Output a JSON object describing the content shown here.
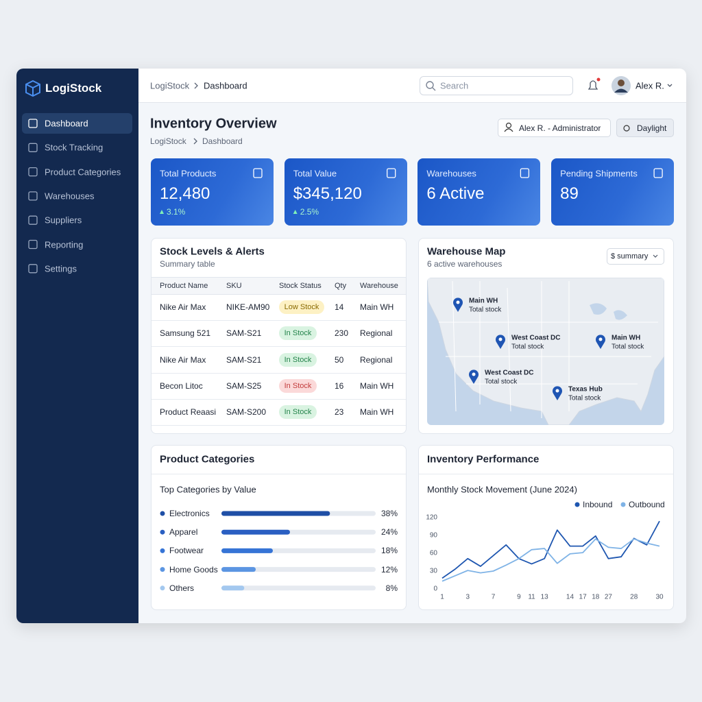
{
  "brand": "LogiStock",
  "nav": {
    "items": [
      "Dashboard",
      "Stock Tracking",
      "Product Categories",
      "Warehouses",
      "Suppliers",
      "Reporting",
      "Settings"
    ],
    "active": 0
  },
  "topbar": {
    "breadcrumb": [
      "LogiStock",
      "Dashboard"
    ],
    "search": "Search",
    "user": "Alex R."
  },
  "header": {
    "title": "Inventory Overview",
    "breadcrumb": [
      "LogiStock",
      "Dashboard"
    ],
    "role": "Alex R. - Administrator",
    "theme": "Daylight"
  },
  "kpis": [
    {
      "label": "Total Products",
      "value": "12,480",
      "change": "3.1%"
    },
    {
      "label": "Total Value",
      "value": "$345,120",
      "change": "2.5%"
    },
    {
      "label": "Warehouses",
      "value": "6 Active"
    },
    {
      "label": "Pending Shipments",
      "value": "89"
    }
  ],
  "stock_table": {
    "title": "Stock Levels & Alerts",
    "subtitle": "Summary table",
    "columns": [
      "Product Name",
      "SKU",
      "Stock Status",
      "Qty",
      "Warehouse"
    ],
    "rows": [
      [
        "Nike Air Max",
        "NIKE-AM90",
        "Low Stock",
        14,
        "Main WH"
      ],
      [
        "Samsung 521",
        "SAM-S21",
        "In Stock",
        230,
        "Regional"
      ],
      [
        "Nike Air Max",
        "SAM-S21",
        "In Stock",
        50,
        "Regional"
      ],
      [
        "Becon Litoc",
        "SAM-S25",
        "In Stock",
        16,
        "Main WH"
      ],
      [
        "Product Reaasi",
        "SAM-S200",
        "In Stock",
        23,
        "Main WH"
      ]
    ],
    "status_tones": [
      "warning",
      "success",
      "success",
      "danger",
      "success"
    ]
  },
  "map": {
    "title": "Warehouse Map",
    "subtitle": "6 active warehouses",
    "button": "$ summary",
    "pins": [
      {
        "name": "Main WH",
        "detail": "Total stock"
      },
      {
        "name": "West Coast DC",
        "detail": "Total stock"
      },
      {
        "name": "Main WH",
        "detail": "Total stock"
      },
      {
        "name": "West Coast DC",
        "detail": "Total stock"
      },
      {
        "name": "Texas Hub",
        "detail": "Total stock"
      }
    ]
  },
  "chart_data": [
    {
      "type": "bar",
      "title": "Product Categories",
      "subtitle": "Top Categories by Value",
      "categories": [
        "Electronics",
        "Apparel",
        "Footwear",
        "Home Goods",
        "Others"
      ],
      "values": [
        38,
        24,
        18,
        12,
        8
      ],
      "value_labels": [
        "38%",
        "24%",
        "18%",
        "12%",
        "8%"
      ],
      "colors": [
        "#1f4fa6",
        "#2a5fc2",
        "#3674d6",
        "#5b95e2",
        "#a3c8ef"
      ],
      "xlim": [
        0,
        54
      ]
    },
    {
      "type": "line",
      "title": "Inventory Performance",
      "subtitle": "Monthly Stock Movement (June 2024)",
      "categories": [
        "1",
        null,
        "3",
        null,
        "7",
        null,
        "9",
        "11",
        "13",
        null,
        "14",
        "17",
        "18",
        "27",
        null,
        "28",
        null,
        "30"
      ],
      "series": [
        {
          "name": "Inbound",
          "color": "#1e56b0",
          "values": [
            18,
            33,
            51,
            38,
            56,
            74,
            51,
            42,
            51,
            99,
            72,
            72,
            89,
            51,
            54,
            85,
            74,
            114
          ]
        },
        {
          "name": "Outbound",
          "color": "#7fb3e6",
          "values": [
            13,
            22,
            31,
            27,
            30,
            40,
            51,
            66,
            68,
            43,
            59,
            61,
            84,
            70,
            68,
            84,
            77,
            72
          ]
        }
      ],
      "ylim": [
        0,
        120
      ],
      "yticks": [
        0,
        30,
        60,
        90,
        120
      ],
      "grid": false
    }
  ]
}
